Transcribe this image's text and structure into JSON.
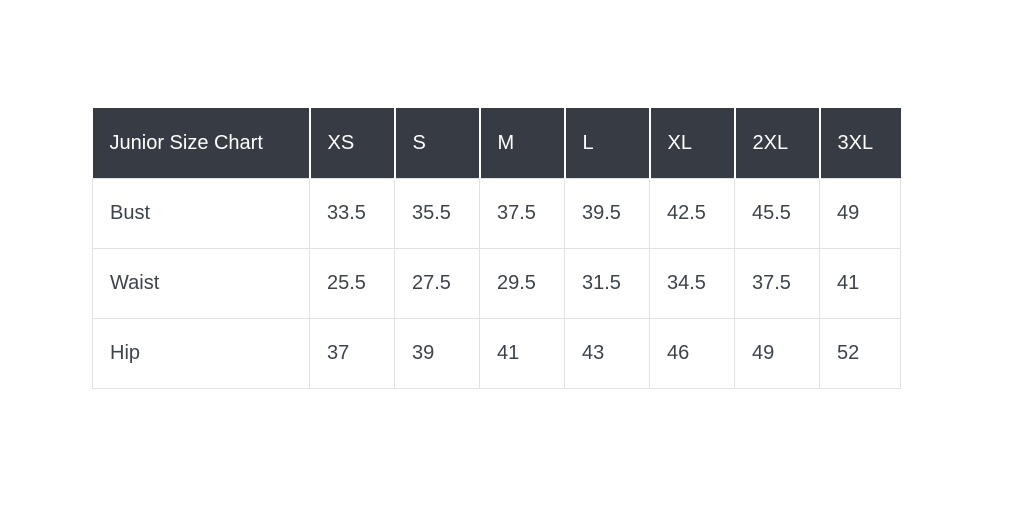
{
  "page": {
    "background": "#ffffff"
  },
  "table": {
    "title_header": "Junior Size Chart",
    "size_headers": [
      "XS",
      "S",
      "M",
      "L",
      "XL",
      "2XL",
      "3XL"
    ],
    "rows": [
      {
        "label": "Bust",
        "values": [
          "33.5",
          "35.5",
          "37.5",
          "39.5",
          "42.5",
          "45.5",
          "49"
        ]
      },
      {
        "label": "Waist",
        "values": [
          "25.5",
          "27.5",
          "29.5",
          "31.5",
          "34.5",
          "37.5",
          "41"
        ]
      },
      {
        "label": "Hip",
        "values": [
          "37",
          "39",
          "41",
          "43",
          "46",
          "49",
          "52"
        ]
      }
    ],
    "colors": {
      "header_bg": "#363b44",
      "header_text": "#ffffff",
      "body_text": "#3d434b",
      "border": "#e2e2e2"
    }
  },
  "chart_data": {
    "type": "table",
    "title": "Junior Size Chart",
    "columns": [
      "Junior Size Chart",
      "XS",
      "S",
      "M",
      "L",
      "XL",
      "2XL",
      "3XL"
    ],
    "rows": [
      [
        "Bust",
        33.5,
        35.5,
        37.5,
        39.5,
        42.5,
        45.5,
        49
      ],
      [
        "Waist",
        25.5,
        27.5,
        29.5,
        31.5,
        34.5,
        37.5,
        41
      ],
      [
        "Hip",
        37,
        39,
        41,
        43,
        46,
        49,
        52
      ]
    ]
  }
}
